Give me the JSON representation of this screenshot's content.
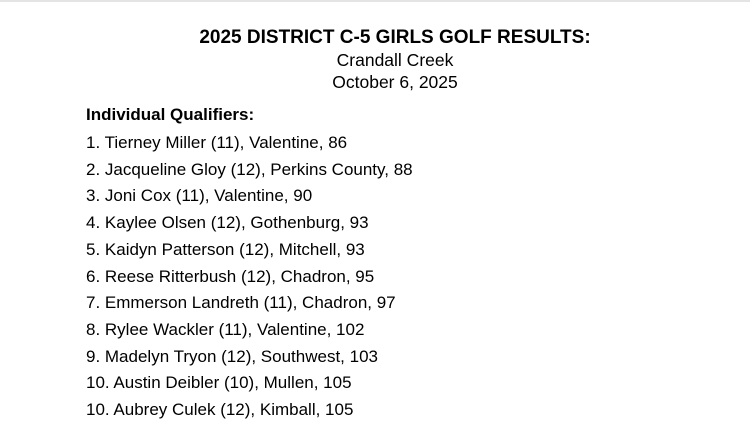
{
  "colors": {
    "background": "#ffffff",
    "text": "#000000",
    "top_rule": "#e4e4e4"
  },
  "header": {
    "title": "2025 DISTRICT C-5 GIRLS GOLF RESULTS:",
    "venue": "Crandall Creek",
    "date": "October 6, 2025"
  },
  "section": {
    "heading": "Individual Qualifiers:",
    "qualifiers": [
      {
        "place": "1",
        "name": "Tierney Miller",
        "grade": "11",
        "school": "Valentine",
        "score": "86",
        "text": "1. Tierney Miller (11), Valentine, 86"
      },
      {
        "place": "2",
        "name": "Jacqueline Gloy",
        "grade": "12",
        "school": "Perkins County",
        "score": "88",
        "text": "2. Jacqueline Gloy (12), Perkins County, 88"
      },
      {
        "place": "3",
        "name": "Joni Cox",
        "grade": "11",
        "school": "Valentine",
        "score": "90",
        "text": "3. Joni Cox (11), Valentine, 90"
      },
      {
        "place": "4",
        "name": "Kaylee Olsen",
        "grade": "12",
        "school": "Gothenburg",
        "score": "93",
        "text": "4. Kaylee Olsen (12), Gothenburg, 93"
      },
      {
        "place": "5",
        "name": "Kaidyn Patterson",
        "grade": "12",
        "school": "Mitchell",
        "score": "93",
        "text": "5. Kaidyn Patterson (12), Mitchell, 93"
      },
      {
        "place": "6",
        "name": "Reese Ritterbush",
        "grade": "12",
        "school": "Chadron",
        "score": "95",
        "text": "6. Reese Ritterbush (12), Chadron, 95"
      },
      {
        "place": "7",
        "name": "Emmerson Landreth",
        "grade": "11",
        "school": "Chadron",
        "score": "97",
        "text": "7. Emmerson Landreth (11), Chadron, 97"
      },
      {
        "place": "8",
        "name": "Rylee Wackler",
        "grade": "11",
        "school": "Valentine",
        "score": "102",
        "text": "8. Rylee Wackler (11), Valentine, 102"
      },
      {
        "place": "9",
        "name": "Madelyn Tryon",
        "grade": "12",
        "school": "Southwest",
        "score": "103",
        "text": "9. Madelyn Tryon (12), Southwest, 103"
      },
      {
        "place": "10",
        "name": "Austin Deibler",
        "grade": "10",
        "school": "Mullen",
        "score": "105",
        "text": "10. Austin Deibler (10), Mullen, 105"
      },
      {
        "place": "10",
        "name": "Aubrey Culek",
        "grade": "12",
        "school": "Kimball",
        "score": "105",
        "text": "10. Aubrey Culek (12), Kimball, 105"
      }
    ]
  }
}
